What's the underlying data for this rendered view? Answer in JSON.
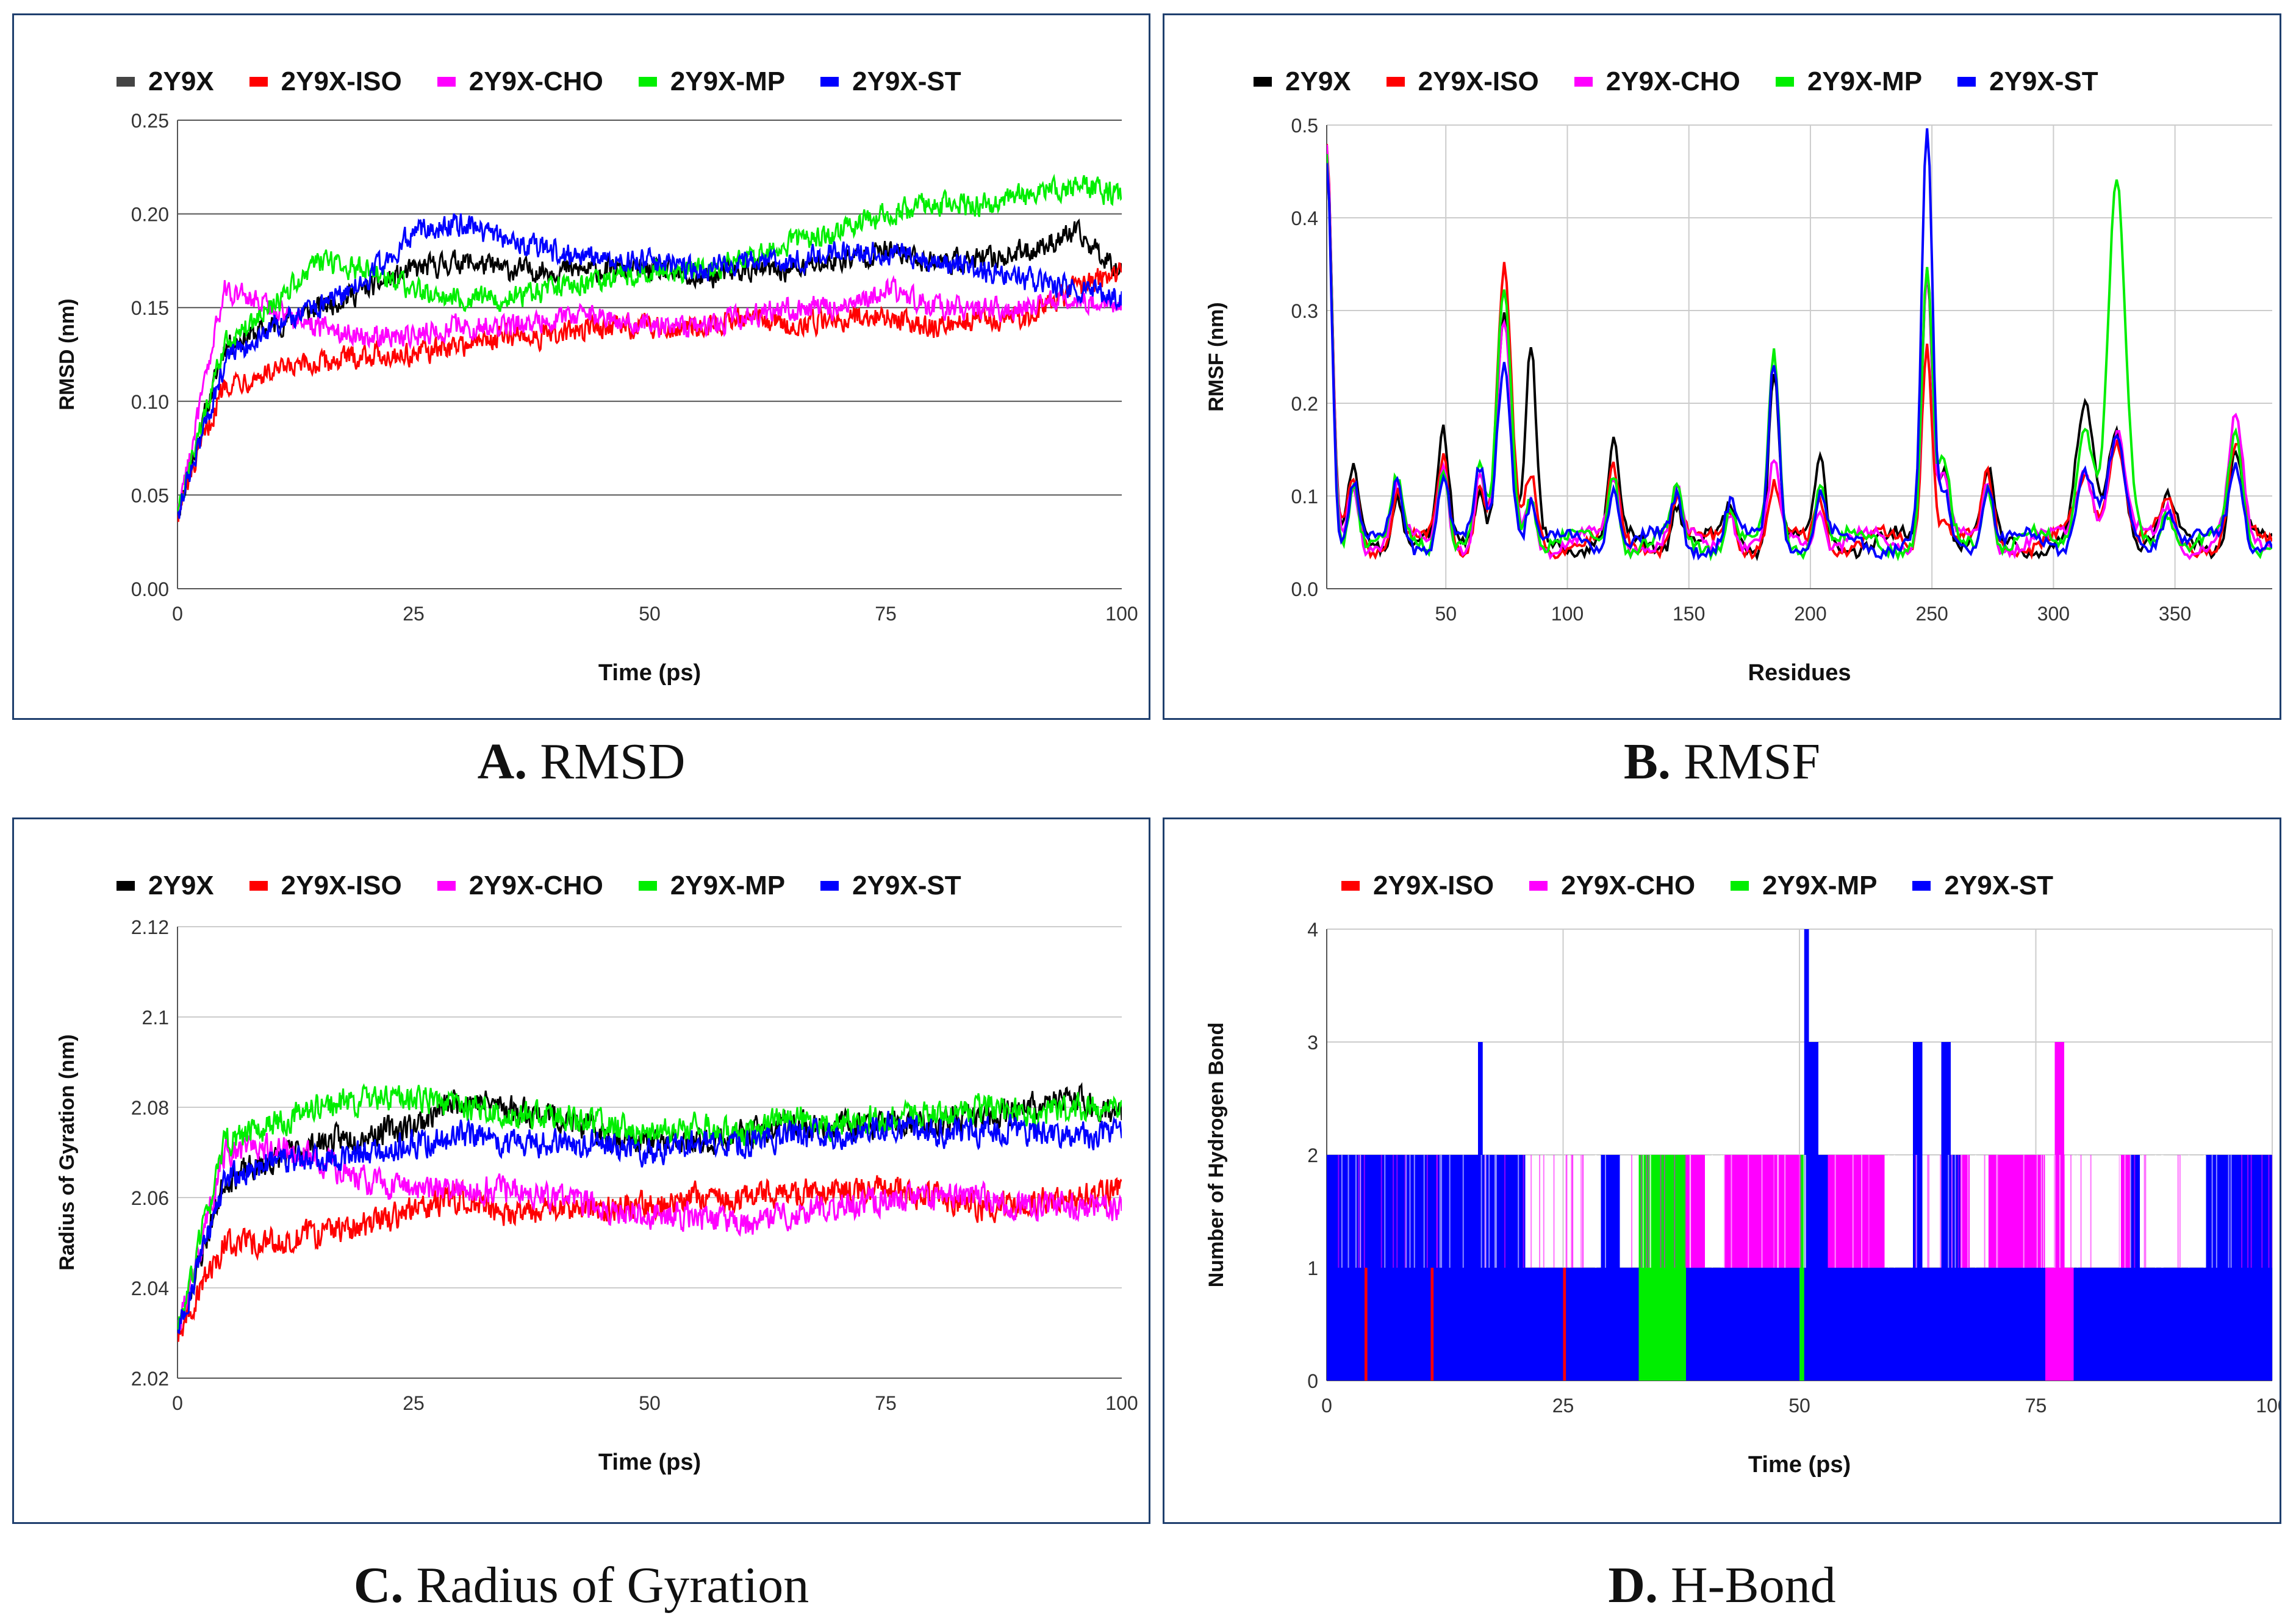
{
  "colors": {
    "2Y9X": "#000000",
    "2Y9X-ISO": "#ff0000",
    "2Y9X-CHO": "#ff00ff",
    "2Y9X-MP": "#00ee00",
    "2Y9X-ST": "#0000ff"
  },
  "captions": [
    {
      "letter": "A.",
      "text": " RMSD"
    },
    {
      "letter": "B.",
      "text": " RMSF"
    },
    {
      "letter": "C.",
      "text": " Radius of Gyration"
    },
    {
      "letter": "D.",
      "text": " H-Bond"
    }
  ],
  "chart_data": [
    {
      "id": "A",
      "type": "line",
      "title": "RMSD",
      "xlabel": "Time (ps)",
      "ylabel": "RMSD (nm)",
      "xlim": [
        0,
        100
      ],
      "ylim": [
        0,
        0.25
      ],
      "xticks": [
        "0",
        "25",
        "50",
        "75",
        "100"
      ],
      "yticks": [
        "0.00",
        "0.05",
        "0.10",
        "0.15",
        "0.20",
        "0.25"
      ],
      "legend": [
        "2Y9X",
        "2Y9X-ISO",
        "2Y9X-CHO",
        "2Y9X-MP",
        "2Y9X-ST"
      ],
      "series": [
        {
          "name": "2Y9X",
          "x": [
            0,
            5,
            10,
            15,
            20,
            25,
            30,
            35,
            40,
            45,
            50,
            55,
            60,
            65,
            70,
            75,
            80,
            85,
            90,
            95,
            100
          ],
          "values": [
            0.04,
            0.13,
            0.14,
            0.15,
            0.16,
            0.17,
            0.175,
            0.17,
            0.17,
            0.17,
            0.17,
            0.165,
            0.17,
            0.17,
            0.175,
            0.18,
            0.175,
            0.175,
            0.18,
            0.19,
            0.17
          ]
        },
        {
          "name": "2Y9X-ISO",
          "x": [
            0,
            5,
            10,
            15,
            20,
            25,
            30,
            35,
            40,
            45,
            50,
            55,
            60,
            65,
            70,
            75,
            80,
            85,
            90,
            95,
            100
          ],
          "values": [
            0.04,
            0.11,
            0.115,
            0.12,
            0.125,
            0.125,
            0.13,
            0.135,
            0.135,
            0.14,
            0.14,
            0.14,
            0.145,
            0.14,
            0.145,
            0.145,
            0.14,
            0.145,
            0.145,
            0.16,
            0.17
          ]
        },
        {
          "name": "2Y9X-CHO",
          "x": [
            0,
            5,
            10,
            15,
            20,
            25,
            30,
            35,
            40,
            45,
            50,
            55,
            60,
            65,
            70,
            75,
            80,
            85,
            90,
            95,
            100
          ],
          "values": [
            0.04,
            0.16,
            0.15,
            0.14,
            0.135,
            0.135,
            0.14,
            0.14,
            0.145,
            0.145,
            0.14,
            0.14,
            0.145,
            0.15,
            0.15,
            0.16,
            0.15,
            0.15,
            0.15,
            0.155,
            0.15
          ]
        },
        {
          "name": "2Y9X-MP",
          "x": [
            0,
            5,
            10,
            15,
            20,
            25,
            30,
            35,
            40,
            45,
            50,
            55,
            60,
            65,
            70,
            75,
            80,
            85,
            90,
            95,
            100
          ],
          "values": [
            0.04,
            0.13,
            0.15,
            0.175,
            0.17,
            0.16,
            0.155,
            0.155,
            0.16,
            0.165,
            0.17,
            0.17,
            0.175,
            0.185,
            0.19,
            0.2,
            0.205,
            0.205,
            0.21,
            0.215,
            0.21
          ]
        },
        {
          "name": "2Y9X-ST",
          "x": [
            0,
            5,
            10,
            15,
            20,
            25,
            30,
            35,
            40,
            45,
            50,
            55,
            60,
            65,
            70,
            75,
            80,
            85,
            90,
            95,
            100
          ],
          "values": [
            0.04,
            0.12,
            0.14,
            0.15,
            0.165,
            0.19,
            0.195,
            0.185,
            0.18,
            0.175,
            0.175,
            0.17,
            0.175,
            0.175,
            0.18,
            0.18,
            0.175,
            0.17,
            0.165,
            0.16,
            0.155
          ]
        }
      ]
    },
    {
      "id": "B",
      "type": "line",
      "title": "RMSF",
      "xlabel": "Residues",
      "ylabel": "RMSF (nm)",
      "xlim": [
        1,
        390
      ],
      "ylim": [
        0,
        0.5
      ],
      "xticks": [
        "50",
        "100",
        "150",
        "200",
        "250",
        "300",
        "350"
      ],
      "yticks": [
        "0.0",
        "0.1",
        "0.2",
        "0.3",
        "0.4",
        "0.5"
      ],
      "legend": [
        "2Y9X",
        "2Y9X-ISO",
        "2Y9X-CHO",
        "2Y9X-MP",
        "2Y9X-ST"
      ],
      "peaks": [
        {
          "x": 1,
          "h": 0.43,
          "w": 3
        },
        {
          "x": 12,
          "h": 0.07,
          "w": 3
        },
        {
          "x": 30,
          "h": 0.06,
          "w": 3
        },
        {
          "x": 49,
          "h": 0.1,
          "w": 3
        },
        {
          "x": 64,
          "h": 0.07,
          "w": 3
        },
        {
          "x": 74,
          "h": 0.24,
          "w": 4
        },
        {
          "x": 85,
          "h": 0.12,
          "w": 3
        },
        {
          "x": 119,
          "h": 0.09,
          "w": 3
        },
        {
          "x": 145,
          "h": 0.05,
          "w": 3
        },
        {
          "x": 167,
          "h": 0.04,
          "w": 3
        },
        {
          "x": 185,
          "h": 0.18,
          "w": 3
        },
        {
          "x": 204,
          "h": 0.07,
          "w": 3
        },
        {
          "x": 248,
          "h": 0.4,
          "w": 3
        },
        {
          "x": 255,
          "h": 0.08,
          "w": 3
        },
        {
          "x": 273,
          "h": 0.07,
          "w": 3
        },
        {
          "x": 313,
          "h": 0.08,
          "w": 5
        },
        {
          "x": 326,
          "h": 0.1,
          "w": 5
        },
        {
          "x": 347,
          "h": 0.04,
          "w": 4
        },
        {
          "x": 375,
          "h": 0.1,
          "w": 4
        }
      ],
      "series": [
        {
          "name": "2Y9X",
          "x": [
            1,
            49,
            74,
            85,
            119,
            185,
            204,
            248,
            255,
            313,
            326,
            375
          ],
          "values": [
            0.47,
            0.16,
            0.3,
            0.25,
            0.15,
            0.24,
            0.14,
            0.35,
            0.14,
            0.19,
            0.18,
            0.15
          ]
        },
        {
          "name": "2Y9X-ISO",
          "x": [
            1,
            49,
            74,
            85,
            119,
            185,
            204,
            248,
            255,
            313,
            326,
            375
          ],
          "values": [
            0.47,
            0.14,
            0.34,
            0.12,
            0.12,
            0.11,
            0.1,
            0.27,
            0.08,
            0.12,
            0.17,
            0.15
          ]
        },
        {
          "name": "2Y9X-CHO",
          "x": [
            1,
            49,
            74,
            85,
            119,
            185,
            204,
            248,
            255,
            313,
            326,
            375
          ],
          "values": [
            0.47,
            0.14,
            0.28,
            0.1,
            0.12,
            0.13,
            0.1,
            0.35,
            0.12,
            0.13,
            0.17,
            0.18
          ]
        },
        {
          "name": "2Y9X-MP",
          "x": [
            1,
            49,
            74,
            85,
            119,
            185,
            204,
            248,
            255,
            313,
            326,
            375
          ],
          "values": [
            0.47,
            0.14,
            0.32,
            0.11,
            0.13,
            0.25,
            0.12,
            0.34,
            0.13,
            0.18,
            0.43,
            0.16
          ]
        },
        {
          "name": "2Y9X-ST",
          "x": [
            1,
            49,
            74,
            85,
            119,
            185,
            204,
            248,
            255,
            313,
            326,
            375
          ],
          "values": [
            0.47,
            0.13,
            0.25,
            0.1,
            0.12,
            0.25,
            0.1,
            0.49,
            0.1,
            0.13,
            0.15,
            0.14
          ]
        }
      ]
    },
    {
      "id": "C",
      "type": "line",
      "title": "Radius of Gyration",
      "xlabel": "Time (ps)",
      "ylabel": "Radius of Gyration (nm)",
      "xlim": [
        0,
        100
      ],
      "ylim": [
        2.02,
        2.12
      ],
      "xticks": [
        "0",
        "25",
        "50",
        "75",
        "100"
      ],
      "yticks": [
        "2.02",
        "2.04",
        "2.06",
        "2.08",
        "2.1",
        "2.12"
      ],
      "legend": [
        "2Y9X",
        "2Y9X-ISO",
        "2Y9X-CHO",
        "2Y9X-MP",
        "2Y9X-ST"
      ],
      "series": [
        {
          "name": "2Y9X",
          "x": [
            0,
            5,
            10,
            15,
            20,
            25,
            30,
            35,
            40,
            45,
            50,
            55,
            60,
            65,
            70,
            75,
            80,
            85,
            90,
            95,
            100
          ],
          "values": [
            2.03,
            2.064,
            2.068,
            2.072,
            2.074,
            2.076,
            2.082,
            2.08,
            2.078,
            2.074,
            2.072,
            2.072,
            2.074,
            2.076,
            2.076,
            2.076,
            2.076,
            2.078,
            2.08,
            2.082,
            2.078
          ]
        },
        {
          "name": "2Y9X-ISO",
          "x": [
            0,
            5,
            10,
            15,
            20,
            25,
            30,
            35,
            40,
            45,
            50,
            55,
            60,
            65,
            70,
            75,
            80,
            85,
            90,
            95,
            100
          ],
          "values": [
            2.03,
            2.05,
            2.05,
            2.052,
            2.054,
            2.057,
            2.06,
            2.056,
            2.057,
            2.058,
            2.058,
            2.06,
            2.06,
            2.061,
            2.061,
            2.062,
            2.06,
            2.058,
            2.059,
            2.06,
            2.062
          ]
        },
        {
          "name": "2Y9X-CHO",
          "x": [
            0,
            5,
            10,
            15,
            20,
            25,
            30,
            35,
            40,
            45,
            50,
            55,
            60,
            65,
            70,
            75,
            80,
            85,
            90,
            95,
            100
          ],
          "values": [
            2.03,
            2.07,
            2.072,
            2.068,
            2.064,
            2.062,
            2.062,
            2.062,
            2.06,
            2.058,
            2.056,
            2.056,
            2.054,
            2.056,
            2.058,
            2.06,
            2.06,
            2.06,
            2.058,
            2.058,
            2.058
          ]
        },
        {
          "name": "2Y9X-MP",
          "x": [
            0,
            5,
            10,
            15,
            20,
            25,
            30,
            35,
            40,
            45,
            50,
            55,
            60,
            65,
            70,
            75,
            80,
            85,
            90,
            95,
            100
          ],
          "values": [
            2.03,
            2.072,
            2.076,
            2.08,
            2.082,
            2.082,
            2.08,
            2.078,
            2.078,
            2.076,
            2.074,
            2.076,
            2.074,
            2.078,
            2.076,
            2.078,
            2.078,
            2.08,
            2.078,
            2.08,
            2.08
          ]
        },
        {
          "name": "2Y9X-ST",
          "x": [
            0,
            5,
            10,
            15,
            20,
            25,
            30,
            35,
            40,
            45,
            50,
            55,
            60,
            65,
            70,
            75,
            80,
            85,
            90,
            95,
            100
          ],
          "values": [
            2.03,
            2.064,
            2.068,
            2.068,
            2.07,
            2.072,
            2.074,
            2.072,
            2.072,
            2.072,
            2.07,
            2.072,
            2.072,
            2.074,
            2.074,
            2.076,
            2.074,
            2.075,
            2.075,
            2.074,
            2.074
          ]
        }
      ]
    },
    {
      "id": "D",
      "type": "bar",
      "title": "H-Bond",
      "xlabel": "Time (ps)",
      "ylabel": "Number of Hydrogen Bond",
      "xlim": [
        0,
        100
      ],
      "ylim": [
        0,
        4
      ],
      "xticks": [
        "0",
        "25",
        "50",
        "75",
        "100"
      ],
      "yticks": [
        "0",
        "1",
        "2",
        "3",
        "4"
      ],
      "legend": [
        "2Y9X-ISO",
        "2Y9X-CHO",
        "2Y9X-MP",
        "2Y9X-ST"
      ],
      "series": [
        {
          "name": "2Y9X-MP",
          "segments": [
            [
              2,
              2.5,
              1
            ],
            [
              3,
              3.5,
              1
            ],
            [
              5,
              10,
              2
            ],
            [
              12,
              13,
              1
            ],
            [
              14,
              18,
              1
            ],
            [
              33,
              38,
              2
            ],
            [
              49.5,
              51,
              2
            ],
            [
              79,
              80,
              1
            ]
          ]
        },
        {
          "name": "2Y9X-CHO",
          "segments": [
            [
              38,
              40,
              2
            ],
            [
              42,
              50,
              2
            ],
            [
              53,
              59,
              2
            ],
            [
              67,
              68,
              2
            ],
            [
              70,
              76,
              2
            ],
            [
              77,
              78,
              3
            ],
            [
              76,
              83,
              1
            ],
            [
              84,
              85,
              2
            ],
            [
              93,
              96,
              1
            ]
          ]
        },
        {
          "name": "2Y9X-ST",
          "segments": [
            [
              0,
              21,
              2
            ],
            [
              16,
              16.5,
              3
            ],
            [
              21,
              33,
              1
            ],
            [
              29,
              31,
              2
            ],
            [
              38,
              40,
              1
            ],
            [
              40,
              50,
              1
            ],
            [
              50.5,
              51,
              4
            ],
            [
              51,
              52,
              3
            ],
            [
              52,
              53,
              2
            ],
            [
              53,
              62,
              1
            ],
            [
              62,
              63,
              3
            ],
            [
              63,
              65,
              1
            ],
            [
              65,
              66,
              3
            ],
            [
              66,
              67,
              2
            ],
            [
              67,
              76,
              1
            ],
            [
              79,
              93,
              1
            ],
            [
              85,
              86,
              2
            ],
            [
              93,
              100,
              2
            ]
          ]
        },
        {
          "name": "2Y9X-ISO",
          "segments": [
            [
              4,
              4.3,
              1
            ],
            [
              11,
              11.3,
              1
            ],
            [
              25,
              25.3,
              1
            ]
          ]
        }
      ]
    }
  ]
}
